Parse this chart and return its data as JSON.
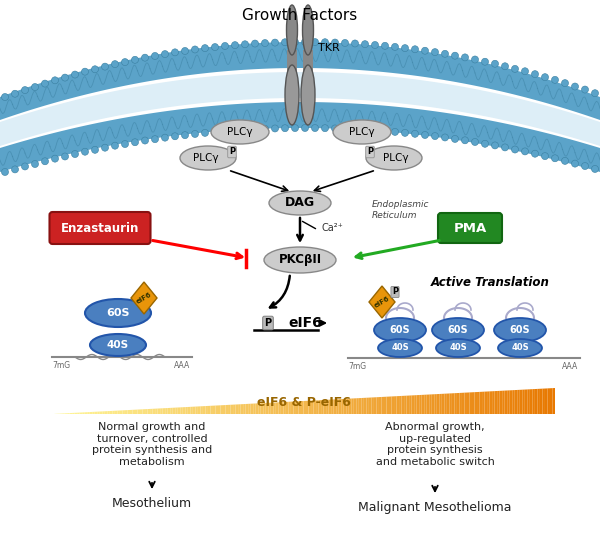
{
  "bg_color": "#ffffff",
  "fig_width": 6.0,
  "fig_height": 5.36,
  "title": "Growth Factors",
  "title_fontsize": 11,
  "membrane_outer_color": "#5ba3c9",
  "membrane_inner_color": "#ddeef7",
  "membrane_wave_color": "#4a90b8",
  "tkr_label": "TKR",
  "dag_label": "DAG",
  "plcg_label": "PLCγ",
  "pkcbii_label": "PKCβII",
  "ellipse_color": "#cccccc",
  "ellipse_ec": "#888888",
  "enzastaurin_label": "Enzastaurin",
  "enzastaurin_bg": "#cc2222",
  "enzastaurin_ec": "#881111",
  "enzastaurin_text_color": "#ffffff",
  "pma_label": "PMA",
  "pma_bg": "#228822",
  "pma_ec": "#116611",
  "pma_text_color": "#ffffff",
  "active_translation_label": "Active Translation",
  "gradient_label": "eIF6 & P-eIF6",
  "left_text": "Normal growth and\nturnover, controlled\nprotein synthesis and\nmetabolism",
  "left_bottom_label": "Mesothelium",
  "right_text": "Abnormal growth,\nup-regulated\nprotein synthesis\nand metabolic switch",
  "right_bottom_label": "Malignant Mesothelioma",
  "endoplasmic_label": "Endoplasmic\nReticulum",
  "ca_label": "Ca²⁺",
  "eIF6_color": "#e8950a",
  "ribosome_color": "#4a7fc0",
  "ribosome_ec": "#2255aa"
}
